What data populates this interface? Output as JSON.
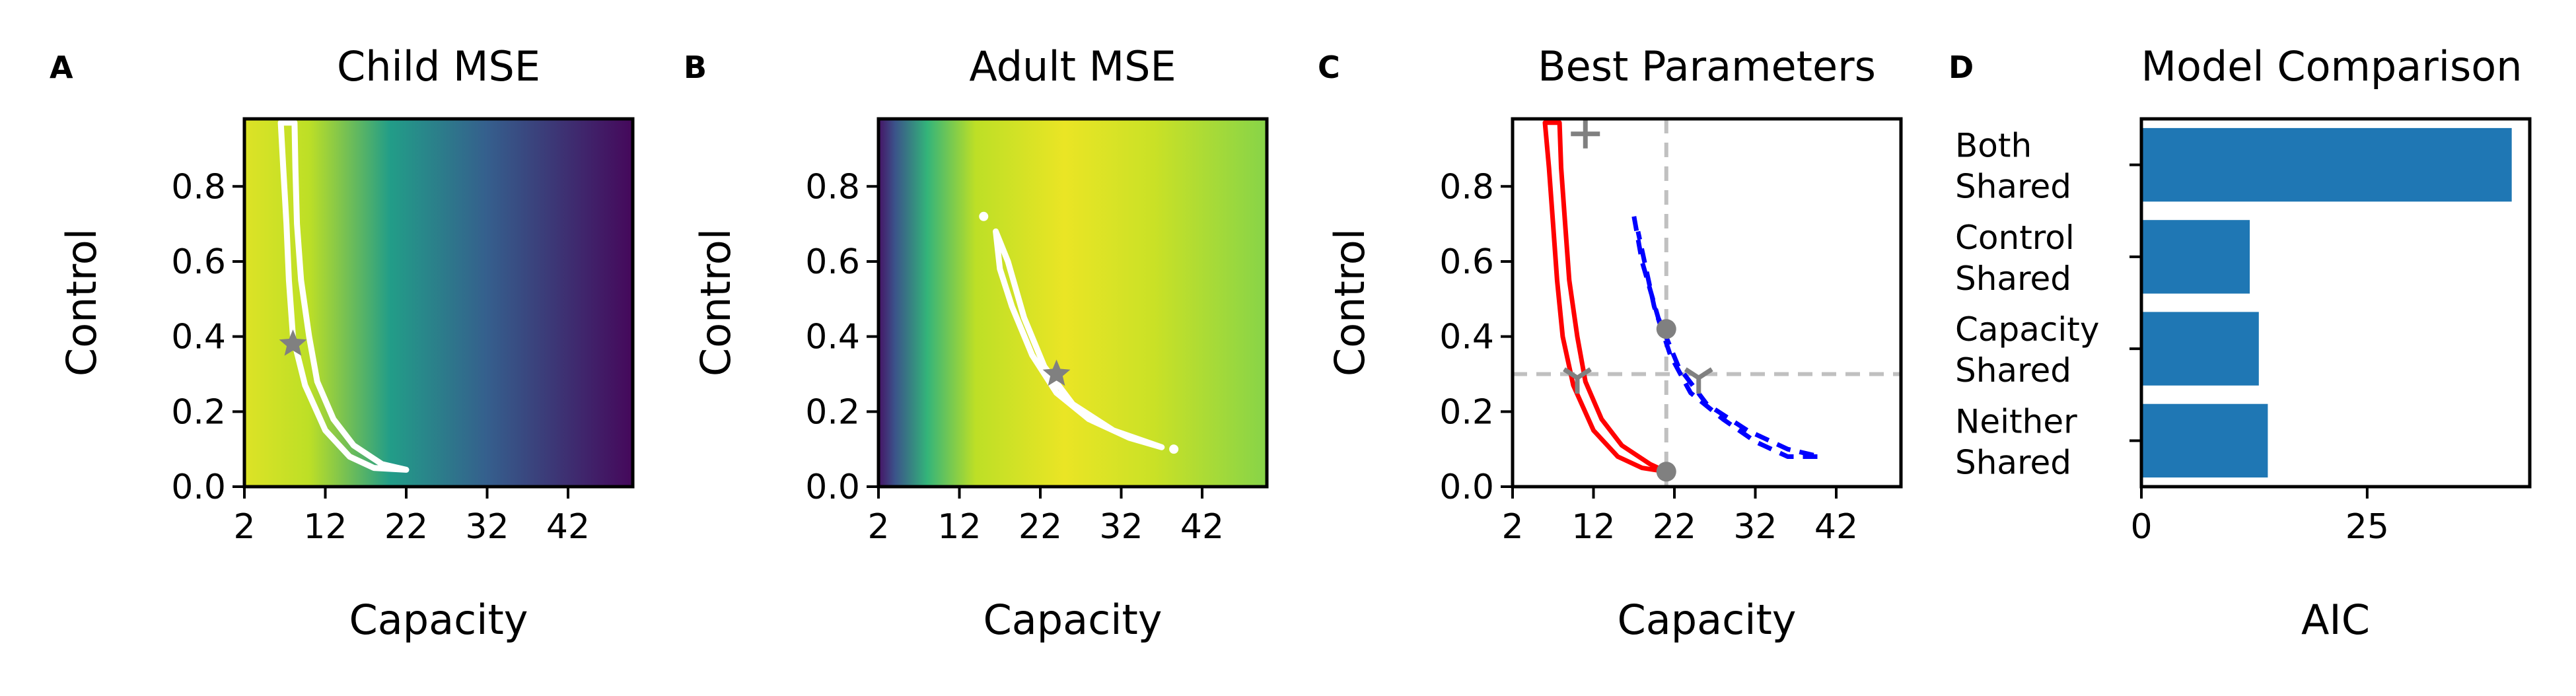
{
  "colors": {
    "frame": "#000000",
    "contour": "#ffffff",
    "marker": "#808080",
    "child_fit": "#ff0000",
    "adult_fit": "#0000ff",
    "guide": "#c0c0c0",
    "bar": "#1f77b4",
    "viridis": [
      "#440154",
      "#482475",
      "#414487",
      "#355f8d",
      "#2a788e",
      "#21918c",
      "#22a884",
      "#44bf70",
      "#7ad151",
      "#bddf26",
      "#fde725"
    ]
  },
  "chart_data": [
    {
      "id": "A",
      "panel_letter": "A",
      "type": "heatmap",
      "title": "Child MSE",
      "xlabel": "Capacity",
      "ylabel": "Control",
      "xlim": [
        2,
        50
      ],
      "ylim": [
        0,
        0.98
      ],
      "xticks": [
        2,
        12,
        22,
        32,
        42
      ],
      "yticks": [
        0.0,
        0.2,
        0.4,
        0.6,
        0.8
      ],
      "ytick_labels": [
        "0.0",
        "0.2",
        "0.4",
        "0.6",
        "0.8"
      ],
      "colormap": "viridis (yellow = low MSE)",
      "colormap_stops": [
        {
          "capacity": 2,
          "level": 0.95
        },
        {
          "capacity": 10,
          "level": 0.9
        },
        {
          "capacity": 20,
          "level": 0.55
        },
        {
          "capacity": 32,
          "level": 0.3
        },
        {
          "capacity": 50,
          "level": 0.02
        }
      ],
      "best_fit": {
        "capacity": 8,
        "control": 0.38
      },
      "contour": [
        [
          6.5,
          0.97
        ],
        [
          6.8,
          0.85
        ],
        [
          7.2,
          0.7
        ],
        [
          7.5,
          0.55
        ],
        [
          8.0,
          0.4
        ],
        [
          9.5,
          0.27
        ],
        [
          12.0,
          0.15
        ],
        [
          15.0,
          0.08
        ],
        [
          18.0,
          0.05
        ],
        [
          22.0,
          0.045
        ],
        [
          19.0,
          0.06
        ],
        [
          15.5,
          0.11
        ],
        [
          13.0,
          0.18
        ],
        [
          11.0,
          0.28
        ],
        [
          10.0,
          0.4
        ],
        [
          9.0,
          0.55
        ],
        [
          8.5,
          0.7
        ],
        [
          8.3,
          0.85
        ],
        [
          8.2,
          0.97
        ]
      ]
    },
    {
      "id": "B",
      "panel_letter": "B",
      "type": "heatmap",
      "title": "Adult MSE",
      "xlabel": "Capacity",
      "ylabel": "Control",
      "xlim": [
        2,
        50
      ],
      "ylim": [
        0,
        0.98
      ],
      "xticks": [
        2,
        12,
        22,
        32,
        42
      ],
      "yticks": [
        0.0,
        0.2,
        0.4,
        0.6,
        0.8
      ],
      "ytick_labels": [
        "0.0",
        "0.2",
        "0.4",
        "0.6",
        "0.8"
      ],
      "colormap": "viridis (yellow = low MSE)",
      "colormap_stops": [
        {
          "capacity": 2,
          "level": 0.05
        },
        {
          "capacity": 4,
          "level": 0.25
        },
        {
          "capacity": 8,
          "level": 0.65
        },
        {
          "capacity": 14,
          "level": 0.9
        },
        {
          "capacity": 25,
          "level": 0.97
        },
        {
          "capacity": 36,
          "level": 0.92
        },
        {
          "capacity": 50,
          "level": 0.82
        }
      ],
      "best_fit": {
        "capacity": 24,
        "control": 0.3
      },
      "contour": [
        [
          16.5,
          0.68
        ],
        [
          18.0,
          0.6
        ],
        [
          20.0,
          0.45
        ],
        [
          22.5,
          0.32
        ],
        [
          26.0,
          0.22
        ],
        [
          31.0,
          0.15
        ],
        [
          37.0,
          0.105
        ],
        [
          33.0,
          0.13
        ],
        [
          28.0,
          0.18
        ],
        [
          24.0,
          0.25
        ],
        [
          21.0,
          0.35
        ],
        [
          18.5,
          0.48
        ],
        [
          17.0,
          0.58
        ],
        [
          16.5,
          0.68
        ]
      ],
      "contour_dots": [
        [
          15.0,
          0.72
        ],
        [
          38.5,
          0.1
        ]
      ]
    },
    {
      "id": "C",
      "panel_letter": "C",
      "type": "line",
      "title": "Best Parameters",
      "xlabel": "Capacity",
      "ylabel": "Control",
      "xlim": [
        2,
        50
      ],
      "ylim": [
        0,
        0.98
      ],
      "xticks": [
        2,
        12,
        22,
        32,
        42
      ],
      "yticks": [
        0.0,
        0.2,
        0.4,
        0.6,
        0.8
      ],
      "ytick_labels": [
        "0.0",
        "0.2",
        "0.4",
        "0.6",
        "0.8"
      ],
      "series": [
        {
          "color": "red",
          "style": "solid",
          "points": [
            [
              6.0,
              0.97
            ],
            [
              6.5,
              0.85
            ],
            [
              7.0,
              0.7
            ],
            [
              7.5,
              0.55
            ],
            [
              8.2,
              0.4
            ],
            [
              9.5,
              0.27
            ],
            [
              12.0,
              0.15
            ],
            [
              15.0,
              0.08
            ],
            [
              18.0,
              0.05
            ],
            [
              21.0,
              0.04
            ],
            [
              19.0,
              0.06
            ],
            [
              15.5,
              0.11
            ],
            [
              13.0,
              0.18
            ],
            [
              11.0,
              0.28
            ],
            [
              10.0,
              0.4
            ],
            [
              9.0,
              0.55
            ],
            [
              8.5,
              0.7
            ],
            [
              8.0,
              0.85
            ],
            [
              7.8,
              0.97
            ]
          ]
        },
        {
          "color": "blue",
          "style": "dashed",
          "points": [
            [
              17.0,
              0.72
            ],
            [
              18.0,
              0.6
            ],
            [
              20.0,
              0.45
            ],
            [
              22.5,
              0.32
            ],
            [
              26.0,
              0.22
            ],
            [
              31.0,
              0.15
            ],
            [
              36.0,
              0.1
            ],
            [
              40.0,
              0.08
            ],
            [
              36.0,
              0.08
            ],
            [
              32.0,
              0.12
            ],
            [
              28.0,
              0.18
            ],
            [
              24.0,
              0.25
            ],
            [
              21.5,
              0.35
            ],
            [
              19.5,
              0.48
            ],
            [
              18.5,
              0.58
            ],
            [
              17.5,
              0.68
            ]
          ]
        }
      ],
      "guides": {
        "x": 21,
        "y": 0.3
      },
      "markers": [
        {
          "shape": "plus",
          "capacity": 11,
          "control": 0.94
        },
        {
          "shape": "tri",
          "capacity": 10,
          "control": 0.29
        },
        {
          "shape": "dot",
          "capacity": 21,
          "control": 0.42
        },
        {
          "shape": "tri",
          "capacity": 25,
          "control": 0.29
        },
        {
          "shape": "dot",
          "capacity": 21,
          "control": 0.04
        }
      ]
    },
    {
      "id": "D",
      "panel_letter": "D",
      "type": "bar",
      "orientation": "horizontal",
      "title": "Model Comparison",
      "xlabel": "AIC",
      "ylabel": "",
      "xlim": [
        0,
        43
      ],
      "xticks": [
        0,
        25
      ],
      "categories": [
        [
          "Both",
          "Shared"
        ],
        [
          "Control",
          "Shared"
        ],
        [
          "Capacity",
          "Shared"
        ],
        [
          "Neither",
          "Shared"
        ]
      ],
      "values": [
        41,
        12,
        13,
        14
      ]
    }
  ]
}
